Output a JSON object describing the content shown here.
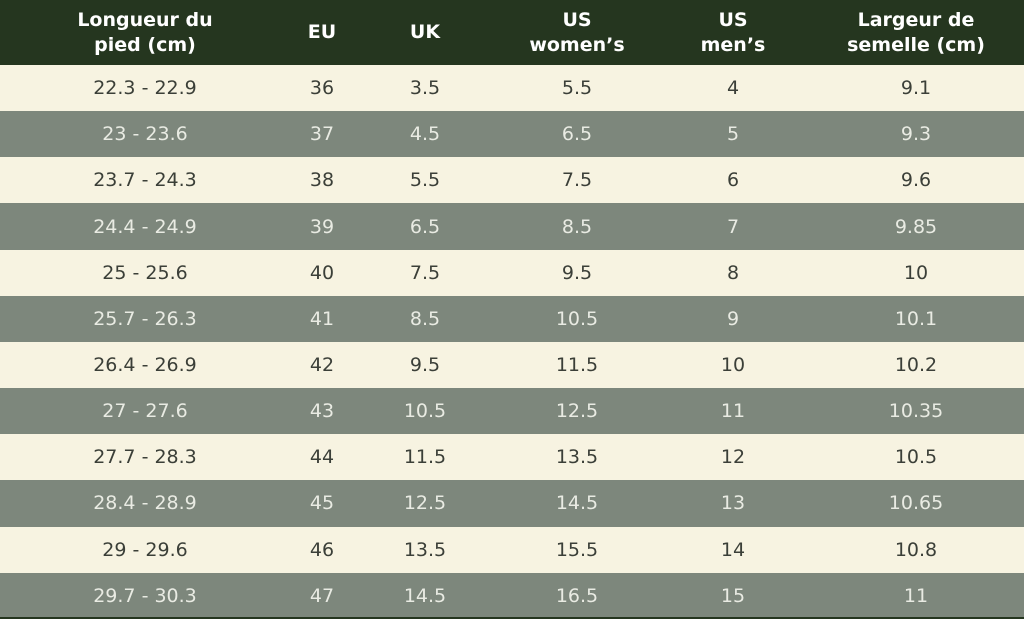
{
  "table": {
    "headers": [
      "Longueur du\npied (cm)",
      "EU",
      "UK",
      "US\nwomen’s",
      "US\nmen’s",
      "Largeur de\nsemelle (cm)"
    ],
    "rows": [
      [
        "22.3 - 22.9",
        "36",
        "3.5",
        "5.5",
        "4",
        "9.1"
      ],
      [
        "23 - 23.6",
        "37",
        "4.5",
        "6.5",
        "5",
        "9.3"
      ],
      [
        "23.7 - 24.3",
        "38",
        "5.5",
        "7.5",
        "6",
        "9.6"
      ],
      [
        "24.4 - 24.9",
        "39",
        "6.5",
        "8.5",
        "7",
        "9.85"
      ],
      [
        "25 - 25.6",
        "40",
        "7.5",
        "9.5",
        "8",
        "10"
      ],
      [
        "25.7 - 26.3",
        "41",
        "8.5",
        "10.5",
        "9",
        "10.1"
      ],
      [
        "26.4 - 26.9",
        "42",
        "9.5",
        "11.5",
        "10",
        "10.2"
      ],
      [
        "27 - 27.6",
        "43",
        "10.5",
        "12.5",
        "11",
        "10.35"
      ],
      [
        "27.7 - 28.3",
        "44",
        "11.5",
        "13.5",
        "12",
        "10.5"
      ],
      [
        "28.4 - 28.9",
        "45",
        "12.5",
        "14.5",
        "13",
        "10.65"
      ],
      [
        "29 - 29.6",
        "46",
        "13.5",
        "15.5",
        "14",
        "10.8"
      ],
      [
        "29.7 - 30.3",
        "47",
        "14.5",
        "16.5",
        "15",
        "11"
      ]
    ]
  }
}
